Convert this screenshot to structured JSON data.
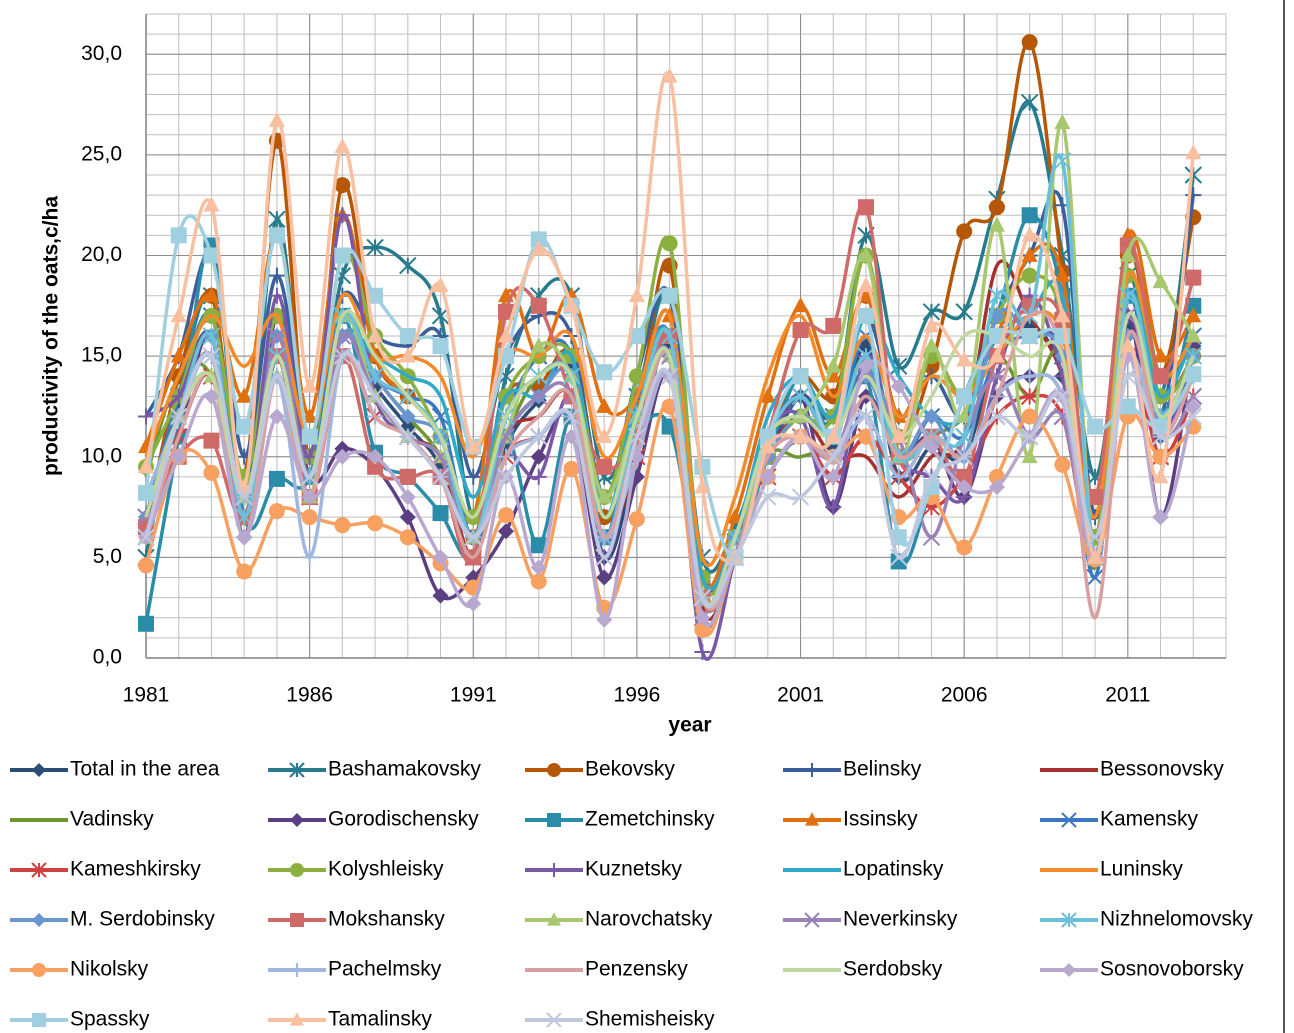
{
  "chart_data": {
    "type": "line",
    "x_label": "year",
    "y_label": "productivity of the oats,c/ha",
    "xlim": [
      1981,
      2014
    ],
    "xticks": [
      1981,
      1986,
      1991,
      1996,
      2001,
      2006,
      2011
    ],
    "ylim": [
      0,
      32
    ],
    "yticks": [
      {
        "value": 0,
        "label": "0,0"
      },
      {
        "value": 5,
        "label": "5,0"
      },
      {
        "value": 10,
        "label": "10,0"
      },
      {
        "value": 15,
        "label": "15,0"
      },
      {
        "value": 20,
        "label": "20,0"
      },
      {
        "value": 25,
        "label": "25,0"
      },
      {
        "value": 30,
        "label": "30,0"
      }
    ],
    "grid": true,
    "minor_grid": true,
    "smooth": true,
    "legend": "bottom",
    "x": [
      1981,
      1982,
      1983,
      1984,
      1985,
      1986,
      1987,
      1988,
      1989,
      1990,
      1991,
      1992,
      1993,
      1994,
      1995,
      1996,
      1997,
      1998,
      1999,
      2000,
      2001,
      2002,
      2003,
      2004,
      2005,
      2006,
      2007,
      2008,
      2009,
      2010,
      2011,
      2012,
      2013
    ],
    "series": [
      {
        "name": "Total in the area",
        "color": "#2c4d75",
        "marker": "diamond",
        "values": [
          7,
          12.5,
          16,
          6,
          15,
          9,
          16,
          13.5,
          11.5,
          9.5,
          5,
          10.5,
          12.8,
          14.5,
          5,
          10,
          15.5,
          3,
          5,
          9,
          11,
          10.5,
          15.5,
          9,
          10.5,
          10,
          15,
          16.5,
          14,
          5,
          16.5,
          11,
          15.5
        ]
      },
      {
        "name": "Bashamakovsky",
        "color": "#277b8c",
        "marker": "star",
        "values": [
          5,
          13,
          18,
          8,
          21.8,
          10,
          19,
          20.4,
          19.5,
          17,
          7,
          14,
          18,
          18,
          9,
          13,
          18,
          5,
          6.5,
          11,
          13,
          12,
          21,
          14.5,
          17.2,
          17.2,
          22.8,
          27.6,
          20,
          9,
          19,
          13,
          24
        ]
      },
      {
        "name": "Bekovsky",
        "color": "#b65708",
        "marker": "circle",
        "values": [
          6.5,
          14,
          18,
          9,
          25.7,
          10,
          23.5,
          15,
          13,
          11,
          6,
          13,
          13.5,
          15,
          7,
          12,
          19.5,
          3,
          6,
          11,
          14,
          13,
          18,
          11,
          14.5,
          21.2,
          22.4,
          30.6,
          19.2,
          6,
          20,
          14,
          21.9
        ]
      },
      {
        "name": "Belinsky",
        "color": "#3a5f9a",
        "marker": "plus",
        "values": [
          12,
          15,
          20,
          10,
          19,
          11,
          18,
          16,
          15.5,
          16,
          9,
          15,
          17,
          16,
          8,
          14,
          18,
          4,
          6,
          10,
          13,
          12,
          17,
          12,
          14,
          12,
          17,
          20,
          22.5,
          7,
          18,
          12,
          23
        ]
      },
      {
        "name": "Bessonovsky",
        "color": "#a5302d",
        "marker": "none",
        "values": [
          6,
          12,
          15,
          7,
          16,
          9,
          15,
          13,
          11,
          10,
          5,
          11,
          12,
          13,
          6,
          10,
          16,
          2.5,
          5,
          10,
          12,
          10,
          10,
          8,
          10,
          11,
          19.5,
          17,
          14,
          7,
          18,
          13,
          15
        ]
      },
      {
        "name": "Vadinsky",
        "color": "#6f9630",
        "marker": "none",
        "values": [
          9,
          14,
          14,
          8,
          15,
          8,
          17,
          14,
          12,
          10,
          6,
          11,
          14,
          14,
          7,
          11,
          15,
          3,
          5,
          10,
          10,
          11,
          15,
          10,
          11,
          12,
          15,
          13,
          15,
          4.5,
          20,
          14,
          16
        ]
      },
      {
        "name": "Gorodischensky",
        "color": "#5c3f82",
        "marker": "diamond",
        "values": [
          6,
          11,
          16,
          6,
          17,
          9,
          10.4,
          9.5,
          7,
          3.1,
          4,
          6.3,
          10,
          12,
          4,
          9,
          14,
          3,
          5,
          10,
          13,
          7.5,
          13,
          10,
          11,
          8,
          13,
          14,
          13,
          5,
          17,
          7,
          15.5
        ]
      },
      {
        "name": "Zemetchinsky",
        "color": "#2a8ca8",
        "marker": "square",
        "values": [
          1.7,
          11,
          20.5,
          7,
          8.9,
          9,
          17,
          10.2,
          9,
          7.2,
          5,
          11,
          5.6,
          12,
          6,
          11,
          11.5,
          4,
          5,
          10,
          14,
          11,
          14,
          4.8,
          8.5,
          13,
          17,
          22,
          18,
          6,
          18,
          12,
          17.5
        ]
      },
      {
        "name": "Issinsky",
        "color": "#e07010",
        "marker": "triangle",
        "values": [
          10.5,
          15,
          18,
          13,
          21,
          12,
          22,
          15,
          13,
          11,
          7,
          18,
          15,
          18,
          12.5,
          13,
          17,
          4,
          7,
          13,
          17.5,
          14,
          18,
          12,
          15,
          13,
          16,
          20,
          19,
          6,
          21,
          15,
          17
        ]
      },
      {
        "name": "Kamensky",
        "color": "#3c78c0",
        "marker": "x",
        "values": [
          7,
          13,
          17,
          8,
          16,
          10,
          17,
          14,
          13,
          12,
          6,
          12,
          15,
          15,
          6,
          13,
          16,
          3,
          5,
          11,
          13,
          11,
          16,
          10,
          12,
          11,
          15,
          16,
          15,
          4,
          18,
          13,
          16
        ]
      },
      {
        "name": "Kameshkirsky",
        "color": "#d04040",
        "marker": "star",
        "values": [
          6,
          11,
          14,
          7,
          15,
          8,
          15,
          12,
          11,
          9,
          5,
          10,
          11,
          12,
          6,
          10,
          14,
          3,
          5,
          9,
          11,
          9,
          11,
          9,
          7.5,
          9,
          12,
          13,
          12,
          5,
          15,
          10,
          13
        ]
      },
      {
        "name": "Kolyshleisky",
        "color": "#8cb040",
        "marker": "circle",
        "values": [
          9.5,
          13,
          17,
          9,
          17,
          10,
          20,
          16,
          14,
          11,
          7,
          13,
          15,
          15,
          8,
          14,
          20.6,
          4,
          6,
          10,
          12,
          12,
          20,
          11,
          15,
          13,
          17,
          19,
          17,
          6,
          19,
          13,
          15
        ]
      },
      {
        "name": "Kuznetsky",
        "color": "#7a58a8",
        "marker": "plus",
        "values": [
          12,
          13,
          16,
          7,
          18,
          10,
          22,
          13,
          11,
          9,
          6,
          10,
          9,
          13,
          5,
          11,
          15,
          0.3,
          5,
          11,
          12,
          7.5,
          15,
          10,
          9,
          8,
          14,
          18,
          14,
          5,
          17,
          11,
          15
        ]
      },
      {
        "name": "Lopatinsky",
        "color": "#30a8c8",
        "marker": "none",
        "values": [
          8,
          12,
          15,
          8,
          14,
          9,
          16,
          15,
          14,
          13,
          8,
          13,
          13,
          15,
          7,
          13,
          16,
          4,
          6,
          12,
          14,
          12,
          17,
          14,
          12,
          12,
          16,
          17,
          18,
          5,
          18,
          13,
          16
        ]
      },
      {
        "name": "Luninsky",
        "color": "#f58a2a",
        "marker": "none",
        "values": [
          10,
          14,
          17,
          14.5,
          17,
          11,
          18,
          15,
          15,
          14,
          10,
          15,
          15,
          16,
          10,
          13,
          17,
          5,
          8,
          14,
          17,
          13,
          16,
          12,
          14,
          13,
          15,
          17,
          16,
          7,
          19,
          14,
          16
        ]
      },
      {
        "name": "M. Serdobinsky",
        "color": "#6a96d0",
        "marker": "diamond",
        "values": [
          7,
          12,
          16,
          7,
          16,
          9,
          16,
          14,
          12,
          11,
          6,
          11,
          13,
          14,
          6,
          11,
          15,
          3,
          6,
          10,
          12,
          11,
          14,
          10,
          12,
          10,
          17,
          16,
          15,
          5,
          16,
          12,
          15
        ]
      },
      {
        "name": "Mokshansky",
        "color": "#d06a68",
        "marker": "square",
        "values": [
          6.5,
          10,
          10.8,
          7,
          15,
          8,
          15,
          9.5,
          9,
          9,
          5,
          17.2,
          17.5,
          13,
          9.5,
          11,
          16,
          3,
          5,
          11,
          16.3,
          16.5,
          22.4,
          10,
          11,
          9,
          15,
          17.5,
          16.8,
          8,
          20.5,
          14,
          18.9
        ]
      },
      {
        "name": "Narovchatsky",
        "color": "#a8c870",
        "marker": "triangle",
        "values": [
          6,
          12,
          14,
          8,
          14,
          8,
          17,
          13,
          11,
          10,
          6,
          11,
          15.5,
          14,
          8,
          12,
          15,
          3,
          5,
          11,
          12,
          14.5,
          20,
          10,
          15.5,
          12,
          21.5,
          10,
          26.6,
          5,
          20,
          18.7,
          16
        ]
      },
      {
        "name": "Neverkinsky",
        "color": "#9882b8",
        "marker": "x",
        "values": [
          7,
          12,
          15,
          7,
          16,
          9,
          16,
          13,
          11,
          10,
          6,
          11,
          13,
          13,
          5,
          12,
          15,
          2,
          5,
          10,
          11,
          10,
          14,
          11,
          6,
          11,
          14,
          11,
          12,
          5,
          17,
          11,
          13
        ]
      },
      {
        "name": "Nizhnelomovsky",
        "color": "#6ac0d8",
        "marker": "star",
        "values": [
          6,
          12,
          16,
          7,
          15,
          9,
          17,
          14,
          13,
          11,
          6,
          12,
          14,
          14,
          6,
          12,
          16,
          3,
          6,
          11,
          13,
          11,
          15,
          10,
          11,
          11,
          18,
          17,
          24.7,
          5,
          18,
          12,
          15
        ]
      },
      {
        "name": "Nikolsky",
        "color": "#f8a060",
        "marker": "circle",
        "values": [
          4.6,
          10,
          9.2,
          4.3,
          7.3,
          7,
          6.6,
          6.7,
          6,
          4.7,
          3.5,
          7.1,
          3.8,
          9.4,
          2.5,
          6.9,
          12.5,
          1.4,
          5,
          9,
          11,
          10,
          11,
          7,
          8,
          5.5,
          9,
          12,
          9.6,
          4.9,
          12,
          10,
          11.5
        ]
      },
      {
        "name": "Pachelmsky",
        "color": "#a0b8e0",
        "marker": "plus",
        "values": [
          8,
          12,
          15,
          8,
          14,
          5,
          15,
          12,
          11,
          9,
          6,
          10,
          11,
          12,
          6,
          10,
          14,
          3,
          5,
          9,
          11,
          10,
          12,
          9,
          11,
          10,
          13,
          14,
          13,
          5,
          15,
          11,
          14
        ]
      },
      {
        "name": "Penzensky",
        "color": "#d8a0a0",
        "marker": "none",
        "values": [
          6,
          11,
          14,
          6,
          14,
          8,
          15,
          12,
          11,
          9,
          5,
          10,
          12,
          13,
          6,
          11,
          15,
          3,
          5,
          10,
          11,
          10,
          13,
          10,
          11,
          10,
          13,
          17,
          15,
          2,
          16,
          11,
          14
        ]
      },
      {
        "name": "Serdobsky",
        "color": "#c0d8a0",
        "marker": "none",
        "values": [
          7,
          12,
          14,
          8,
          15,
          9,
          17,
          15,
          13,
          11,
          7,
          12,
          14,
          14,
          7,
          12,
          15,
          3,
          6,
          11,
          12,
          11,
          14,
          11,
          13,
          16,
          16,
          15,
          15,
          5,
          17,
          12,
          15
        ]
      },
      {
        "name": "Sosnovoborsky",
        "color": "#b8a8d0",
        "marker": "diamond",
        "values": [
          6,
          10,
          13,
          6,
          12,
          8,
          10,
          10,
          8,
          5,
          2.7,
          9,
          4.5,
          11,
          1.9,
          10,
          14,
          2,
          5,
          9,
          11,
          9,
          14.5,
          13.5,
          10.5,
          8.5,
          8.5,
          11,
          13,
          5,
          15,
          7,
          12.5
        ]
      },
      {
        "name": "Spassky",
        "color": "#a0d0e0",
        "marker": "square",
        "values": [
          8.2,
          21,
          20,
          11.5,
          21,
          11,
          20,
          18,
          16,
          15.5,
          10.5,
          15,
          20.8,
          17.5,
          14.2,
          16,
          18,
          9.5,
          5,
          11,
          14,
          11,
          17,
          6,
          8.5,
          13,
          16,
          16,
          16,
          11.5,
          12.5,
          11.5,
          14.1
        ]
      },
      {
        "name": "Tamalinsky",
        "color": "#f8c0a0",
        "marker": "triangle",
        "values": [
          9.5,
          17,
          22.5,
          8.5,
          26.7,
          13.5,
          25.4,
          16,
          15,
          18.5,
          10.5,
          16,
          20.3,
          17.5,
          11,
          18,
          28.9,
          8.5,
          5,
          10.5,
          11,
          11,
          18.5,
          11,
          16.5,
          14.8,
          15,
          21,
          17,
          5,
          15.5,
          9,
          25.1
        ]
      },
      {
        "name": "Shemisheisky",
        "color": "#c0c8e0",
        "marker": "x",
        "values": [
          6,
          12,
          15,
          8,
          14,
          9,
          15,
          13,
          11,
          9,
          6,
          9,
          11,
          12,
          5,
          11,
          14,
          3,
          5,
          8,
          8,
          10,
          12,
          5,
          9,
          10,
          12,
          11,
          13,
          6,
          14,
          11,
          12
        ]
      }
    ]
  }
}
